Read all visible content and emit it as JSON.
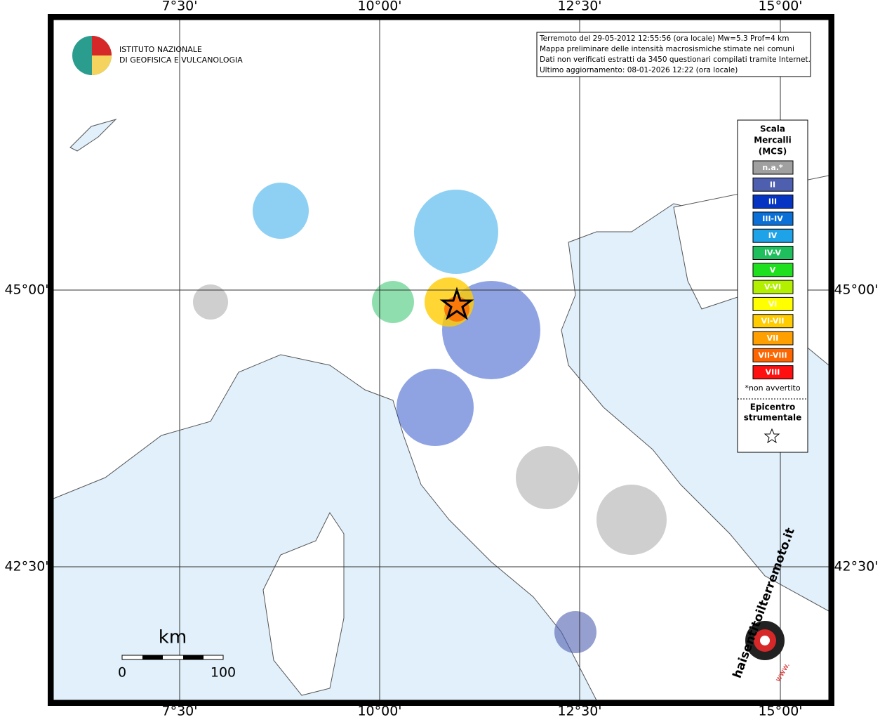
{
  "map": {
    "lon_labels": [
      "7°30'",
      "10°00'",
      "12°30'",
      "15°00'"
    ],
    "lat_labels": [
      "45°00'",
      "42°30'"
    ],
    "logo": {
      "line1": "ISTITUTO NAZIONALE",
      "line2": "DI GEOFISICA E VULCANOLOGIA"
    },
    "info": [
      "Terremoto del 29-05-2012 12:55:56 (ora locale) Mw=5.3 Prof=4 km",
      "Mappa preliminare delle intensità macrosismiche stimate nei comuni",
      "Dati non verificati estratti da 3450 questionari compilati tramite Internet.",
      "Ultimo aggiornamento: 08-01-2026 12:22 (ora locale)"
    ],
    "legend": {
      "title": [
        "Scala",
        "Mercalli",
        "(MCS)"
      ],
      "items": [
        {
          "label": "n.a.*",
          "color": "#a0a0a0"
        },
        {
          "label": "II",
          "color": "#4f5fb0"
        },
        {
          "label": "III",
          "color": "#0634c2"
        },
        {
          "label": "III-IV",
          "color": "#0a6fd6"
        },
        {
          "label": "IV",
          "color": "#1ea2e8"
        },
        {
          "label": "IV-V",
          "color": "#1fbf5e"
        },
        {
          "label": "V",
          "color": "#1fe01f"
        },
        {
          "label": "V-VI",
          "color": "#b3f000"
        },
        {
          "label": "VI",
          "color": "#ffff00"
        },
        {
          "label": "VI-VII",
          "color": "#ffcc00"
        },
        {
          "label": "VII",
          "color": "#ffa000"
        },
        {
          "label": "VII-VIII",
          "color": "#ff6600"
        },
        {
          "label": "VIII",
          "color": "#ff1010"
        }
      ],
      "note": "*non avvertito",
      "epicenter": [
        "Epicentro",
        "strumentale"
      ]
    },
    "scale": {
      "unit": "km",
      "start": "0",
      "end": "100"
    },
    "site": {
      "name": "haisentitoilterremoto.it",
      "prefix": "www."
    }
  }
}
